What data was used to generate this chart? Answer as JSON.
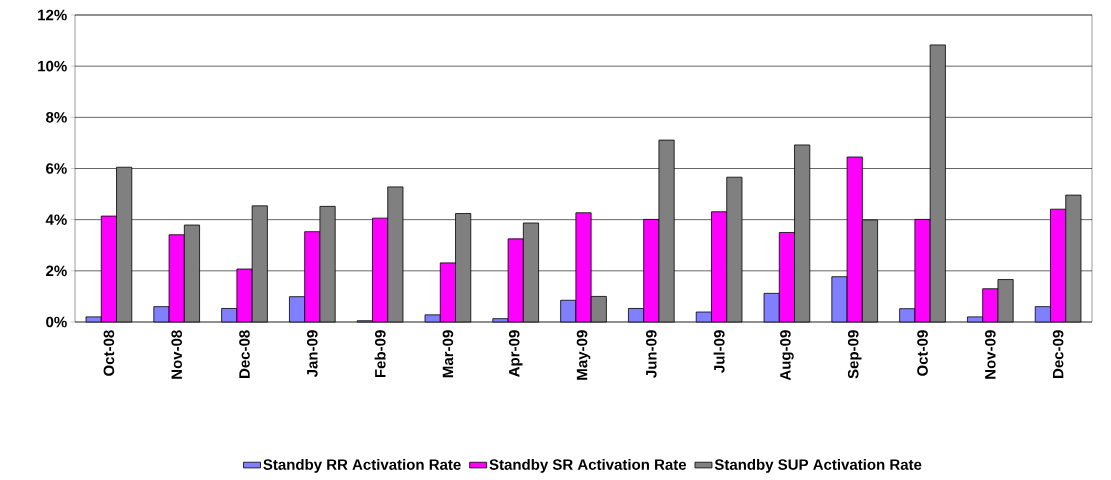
{
  "chart_data": {
    "type": "bar",
    "categories": [
      "Oct-08",
      "Nov-08",
      "Dec-08",
      "Jan-09",
      "Feb-09",
      "Mar-09",
      "Apr-09",
      "May-09",
      "Jun-09",
      "Jul-09",
      "Aug-09",
      "Sep-09",
      "Oct-09",
      "Nov-09",
      "Dec-09"
    ],
    "series": [
      {
        "name": "Standby RR Activation Rate",
        "color": "#8080ff",
        "values": [
          0.2,
          0.6,
          0.53,
          0.99,
          0.05,
          0.28,
          0.13,
          0.85,
          0.53,
          0.39,
          1.12,
          1.77,
          0.52,
          0.2,
          0.6
        ]
      },
      {
        "name": "Standby SR Activation Rate",
        "color": "#ff00ff",
        "values": [
          4.14,
          3.41,
          2.07,
          3.53,
          4.06,
          2.31,
          3.25,
          4.27,
          4.01,
          4.31,
          3.5,
          6.45,
          4.01,
          1.3,
          4.41
        ]
      },
      {
        "name": "Standby SUP Activation Rate",
        "color": "#808080",
        "values": [
          6.05,
          3.79,
          4.54,
          4.52,
          5.28,
          4.24,
          3.87,
          1.0,
          7.11,
          5.66,
          6.92,
          3.99,
          10.83,
          1.66,
          4.96
        ]
      }
    ],
    "ylim": [
      0,
      12
    ],
    "yticks": [
      {
        "value": 0,
        "label": "0%"
      },
      {
        "value": 2,
        "label": "2%"
      },
      {
        "value": 4,
        "label": "4%"
      },
      {
        "value": 6,
        "label": "6%"
      },
      {
        "value": 8,
        "label": "8%"
      },
      {
        "value": 10,
        "label": "10%"
      },
      {
        "value": 12,
        "label": "12%"
      }
    ],
    "grid": "y",
    "legend": "bottom"
  }
}
